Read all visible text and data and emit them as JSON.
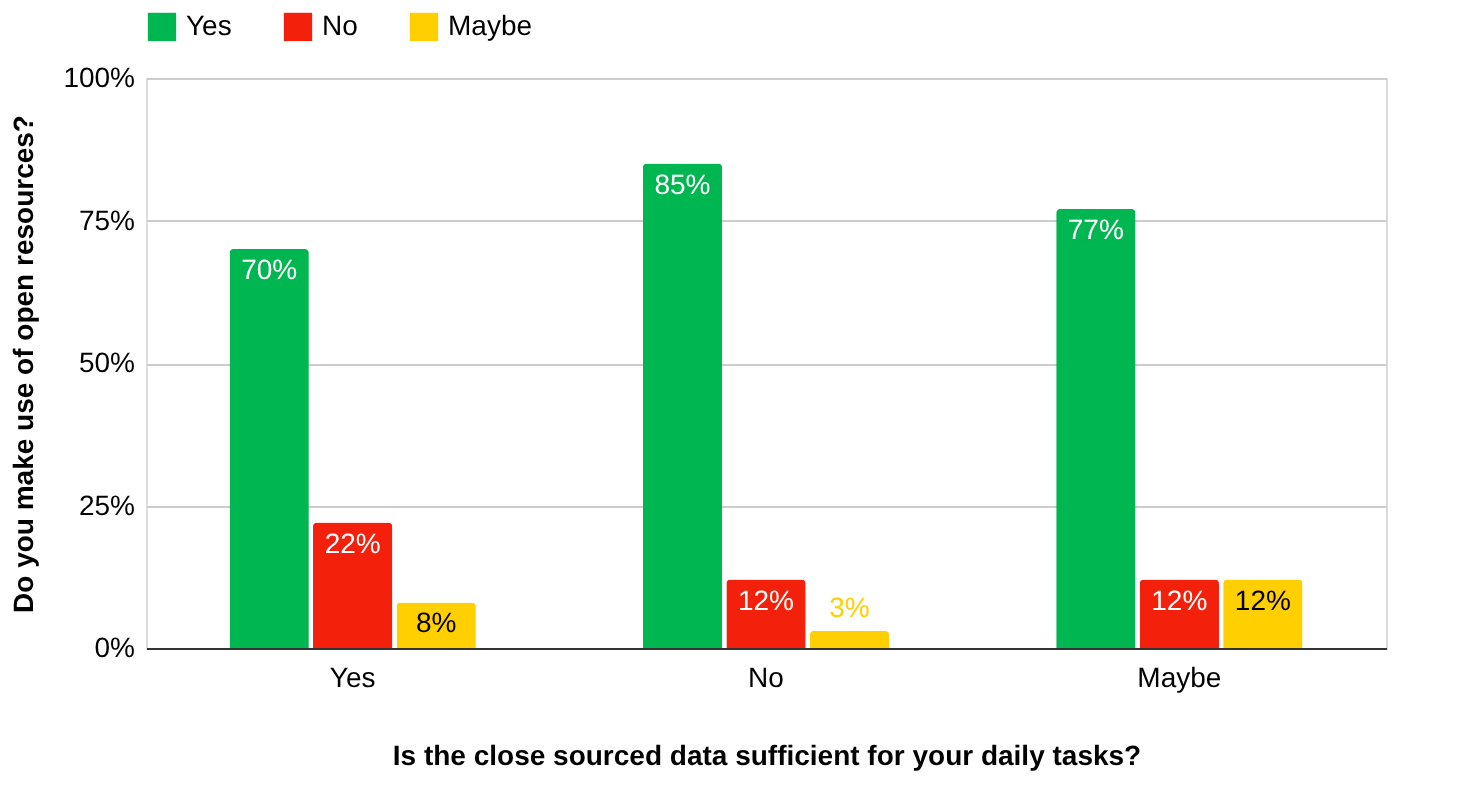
{
  "chart_data": {
    "type": "bar",
    "xlabel": "Is the close sourced data sufficient for your daily tasks?",
    "ylabel": "Do you make use of open resources?",
    "categories": [
      "Yes",
      "No",
      "Maybe"
    ],
    "series": [
      {
        "name": "Yes",
        "color": "#00b650",
        "values": [
          70,
          85,
          77
        ],
        "value_labels": [
          "70%",
          "85%",
          "77%"
        ]
      },
      {
        "name": "No",
        "color": "#f3200b",
        "values": [
          22,
          12,
          12
        ],
        "value_labels": [
          "22%",
          "12%",
          "12%"
        ]
      },
      {
        "name": "Maybe",
        "color": "#ffcf00",
        "values": [
          8,
          3,
          12
        ],
        "value_labels": [
          "8%",
          "3%",
          "12%"
        ]
      }
    ],
    "ylim": [
      0,
      100
    ],
    "yticks": [
      {
        "value": 0,
        "label": "0%"
      },
      {
        "value": 25,
        "label": "25%"
      },
      {
        "value": 50,
        "label": "50%"
      },
      {
        "value": 75,
        "label": "75%"
      },
      {
        "value": 100,
        "label": "100%"
      }
    ],
    "grid": "y",
    "legend": "top"
  }
}
